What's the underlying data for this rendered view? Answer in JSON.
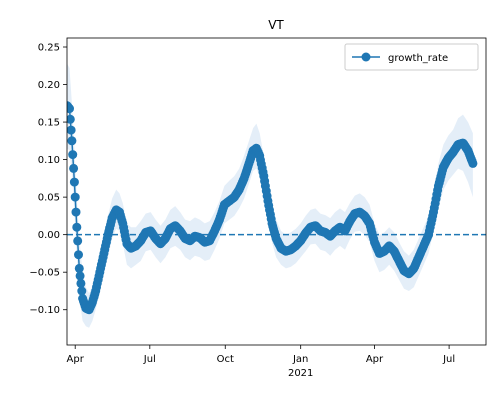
{
  "chart_data": {
    "type": "line",
    "title": "VT",
    "xlabel": "",
    "ylabel": "",
    "x_range": [
      "2020-03-22",
      "2021-08-15"
    ],
    "ylim": [
      -0.147,
      0.262
    ],
    "y_ticks": [
      -0.1,
      -0.05,
      0.0,
      0.05,
      0.1,
      0.15,
      0.2,
      0.25
    ],
    "y_tick_labels": [
      "−0.10",
      "−0.05",
      "0.00",
      "0.05",
      "0.10",
      "0.15",
      "0.20",
      "0.25"
    ],
    "x_ticks": [
      {
        "date": "2020-04-01",
        "label": "Apr",
        "sublabel": ""
      },
      {
        "date": "2020-07-01",
        "label": "Jul",
        "sublabel": ""
      },
      {
        "date": "2020-10-01",
        "label": "Oct",
        "sublabel": ""
      },
      {
        "date": "2021-01-01",
        "label": "Jan",
        "sublabel": "2021"
      },
      {
        "date": "2021-04-01",
        "label": "Apr",
        "sublabel": ""
      },
      {
        "date": "2021-07-01",
        "label": "Jul",
        "sublabel": ""
      }
    ],
    "reference_line": {
      "y": 0,
      "style": "dashed",
      "color": "#1f77b4"
    },
    "legend": {
      "position": "top-right",
      "entries": [
        "growth_rate"
      ]
    },
    "series": [
      {
        "name": "growth_rate",
        "color": "#1f77b4",
        "band_color": "#dbe8f5",
        "points": [
          [
            "2020-03-22",
            0.172,
            0.228,
            0.115
          ],
          [
            "2020-03-25",
            0.168,
            0.222,
            0.112
          ],
          [
            "2020-03-28",
            0.125,
            0.175,
            0.08
          ],
          [
            "2020-03-31",
            0.07,
            0.115,
            0.03
          ],
          [
            "2020-04-03",
            0.01,
            0.05,
            -0.03
          ],
          [
            "2020-04-06",
            -0.045,
            -0.005,
            -0.085
          ],
          [
            "2020-04-10",
            -0.085,
            -0.05,
            -0.115
          ],
          [
            "2020-04-14",
            -0.098,
            -0.07,
            -0.122
          ],
          [
            "2020-04-18",
            -0.1,
            -0.078,
            -0.124
          ],
          [
            "2020-04-22",
            -0.09,
            -0.068,
            -0.115
          ],
          [
            "2020-04-26",
            -0.075,
            -0.052,
            -0.1
          ],
          [
            "2020-05-01",
            -0.05,
            -0.025,
            -0.075
          ],
          [
            "2020-05-06",
            -0.025,
            0.0,
            -0.052
          ],
          [
            "2020-05-11",
            0.0,
            0.025,
            -0.03
          ],
          [
            "2020-05-16",
            0.022,
            0.048,
            -0.005
          ],
          [
            "2020-05-21",
            0.033,
            0.06,
            0.008
          ],
          [
            "2020-05-25",
            0.03,
            0.055,
            0.005
          ],
          [
            "2020-05-29",
            0.015,
            0.042,
            -0.012
          ],
          [
            "2020-06-03",
            -0.012,
            0.015,
            -0.04
          ],
          [
            "2020-06-08",
            -0.018,
            0.01,
            -0.045
          ],
          [
            "2020-06-14",
            -0.015,
            0.01,
            -0.04
          ],
          [
            "2020-06-20",
            -0.008,
            0.018,
            -0.035
          ],
          [
            "2020-06-26",
            0.003,
            0.028,
            -0.022
          ],
          [
            "2020-07-02",
            0.005,
            0.03,
            -0.02
          ],
          [
            "2020-07-08",
            -0.005,
            0.02,
            -0.03
          ],
          [
            "2020-07-14",
            -0.012,
            0.012,
            -0.038
          ],
          [
            "2020-07-20",
            -0.005,
            0.02,
            -0.03
          ],
          [
            "2020-07-26",
            0.008,
            0.033,
            -0.018
          ],
          [
            "2020-08-01",
            0.012,
            0.038,
            -0.015
          ],
          [
            "2020-08-07",
            0.005,
            0.03,
            -0.02
          ],
          [
            "2020-08-13",
            -0.005,
            0.02,
            -0.03
          ],
          [
            "2020-08-19",
            -0.008,
            0.018,
            -0.034
          ],
          [
            "2020-08-25",
            -0.002,
            0.023,
            -0.028
          ],
          [
            "2020-08-31",
            -0.004,
            0.02,
            -0.03
          ],
          [
            "2020-09-06",
            -0.01,
            0.015,
            -0.035
          ],
          [
            "2020-09-12",
            -0.008,
            0.018,
            -0.033
          ],
          [
            "2020-09-18",
            0.005,
            0.03,
            -0.02
          ],
          [
            "2020-09-24",
            0.02,
            0.045,
            -0.005
          ],
          [
            "2020-09-30",
            0.04,
            0.065,
            0.015
          ],
          [
            "2020-10-06",
            0.045,
            0.072,
            0.02
          ],
          [
            "2020-10-12",
            0.05,
            0.078,
            0.025
          ],
          [
            "2020-10-18",
            0.06,
            0.088,
            0.035
          ],
          [
            "2020-10-24",
            0.075,
            0.105,
            0.048
          ],
          [
            "2020-10-30",
            0.095,
            0.125,
            0.068
          ],
          [
            "2020-11-04",
            0.112,
            0.142,
            0.085
          ],
          [
            "2020-11-08",
            0.115,
            0.148,
            0.088
          ],
          [
            "2020-11-12",
            0.105,
            0.135,
            0.078
          ],
          [
            "2020-11-17",
            0.078,
            0.105,
            0.052
          ],
          [
            "2020-11-22",
            0.045,
            0.072,
            0.02
          ],
          [
            "2020-11-27",
            0.015,
            0.04,
            -0.01
          ],
          [
            "2020-12-02",
            -0.005,
            0.02,
            -0.03
          ],
          [
            "2020-12-08",
            -0.018,
            0.005,
            -0.04
          ],
          [
            "2020-12-14",
            -0.022,
            0.0,
            -0.045
          ],
          [
            "2020-12-20",
            -0.02,
            0.003,
            -0.043
          ],
          [
            "2020-12-26",
            -0.015,
            0.008,
            -0.038
          ],
          [
            "2021-01-01",
            -0.008,
            0.015,
            -0.03
          ],
          [
            "2021-01-07",
            0.002,
            0.025,
            -0.022
          ],
          [
            "2021-01-13",
            0.01,
            0.033,
            -0.013
          ],
          [
            "2021-01-19",
            0.012,
            0.035,
            -0.012
          ],
          [
            "2021-01-25",
            0.005,
            0.028,
            -0.02
          ],
          [
            "2021-01-31",
            0.003,
            0.026,
            -0.022
          ],
          [
            "2021-02-06",
            -0.002,
            0.022,
            -0.028
          ],
          [
            "2021-02-12",
            0.005,
            0.03,
            -0.02
          ],
          [
            "2021-02-18",
            0.01,
            0.035,
            -0.015
          ],
          [
            "2021-02-24",
            0.005,
            0.03,
            -0.02
          ],
          [
            "2021-03-02",
            0.018,
            0.042,
            -0.006
          ],
          [
            "2021-03-08",
            0.028,
            0.052,
            0.004
          ],
          [
            "2021-03-14",
            0.03,
            0.055,
            0.005
          ],
          [
            "2021-03-20",
            0.025,
            0.05,
            0.0
          ],
          [
            "2021-03-26",
            0.015,
            0.04,
            -0.01
          ],
          [
            "2021-04-01",
            -0.01,
            0.015,
            -0.035
          ],
          [
            "2021-04-07",
            -0.025,
            0.0,
            -0.05
          ],
          [
            "2021-04-13",
            -0.022,
            0.003,
            -0.047
          ],
          [
            "2021-04-19",
            -0.015,
            0.01,
            -0.04
          ],
          [
            "2021-04-25",
            -0.022,
            0.003,
            -0.048
          ],
          [
            "2021-05-01",
            -0.035,
            -0.01,
            -0.06
          ],
          [
            "2021-05-07",
            -0.048,
            -0.022,
            -0.072
          ],
          [
            "2021-05-13",
            -0.052,
            -0.028,
            -0.075
          ],
          [
            "2021-05-19",
            -0.045,
            -0.02,
            -0.07
          ],
          [
            "2021-05-25",
            -0.03,
            -0.005,
            -0.055
          ],
          [
            "2021-05-31",
            -0.015,
            0.01,
            -0.04
          ],
          [
            "2021-06-06",
            0.0,
            0.025,
            -0.025
          ],
          [
            "2021-06-12",
            0.03,
            0.058,
            0.005
          ],
          [
            "2021-06-18",
            0.065,
            0.095,
            0.035
          ],
          [
            "2021-06-24",
            0.09,
            0.12,
            0.06
          ],
          [
            "2021-06-30",
            0.102,
            0.132,
            0.072
          ],
          [
            "2021-07-06",
            0.11,
            0.14,
            0.08
          ],
          [
            "2021-07-12",
            0.12,
            0.155,
            0.088
          ],
          [
            "2021-07-18",
            0.122,
            0.16,
            0.085
          ],
          [
            "2021-07-24",
            0.112,
            0.15,
            0.07
          ],
          [
            "2021-07-30",
            0.095,
            0.135,
            0.05
          ]
        ]
      }
    ]
  }
}
